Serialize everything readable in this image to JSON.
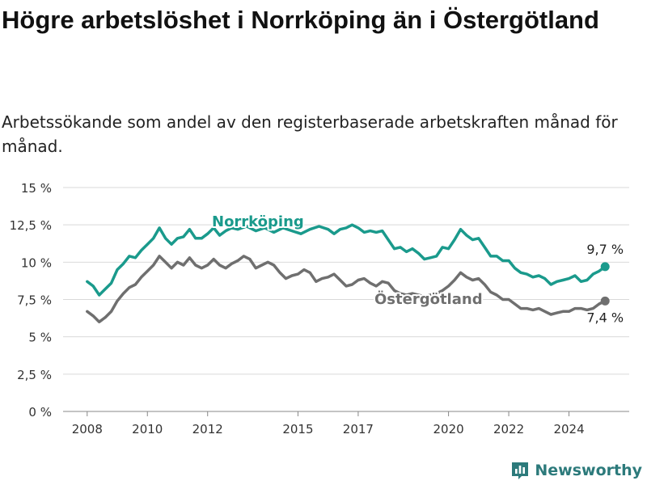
{
  "title": "Högre arbetslöshet i Norrköping än i Östergötland",
  "subtitle": "Arbetssökande som andel av den registerbaserade arbetskraften månad för månad.",
  "brand": "Newsworthy",
  "colors": {
    "norrkoping": "#1a9a8c",
    "ostergotland": "#6f6f6f",
    "grid": "#d9d9d9",
    "brand": "#2c7a7b"
  },
  "chart_data": {
    "type": "line",
    "ylim": [
      0,
      15
    ],
    "y_ticks": [
      0,
      2.5,
      5,
      7.5,
      10,
      12.5,
      15
    ],
    "y_tick_labels": [
      "0 %",
      "2,5 %",
      "5 %",
      "7,5 %",
      "10 %",
      "12,5 %",
      "15 %"
    ],
    "x_ticks": [
      2008,
      2010,
      2012,
      2015,
      2017,
      2020,
      2022,
      2024
    ],
    "x_tick_labels": [
      "2008",
      "2010",
      "2012",
      "2015",
      "2017",
      "2020",
      "2022",
      "2024"
    ],
    "xlim": [
      2007.2,
      2026.0
    ],
    "grid": "horizontal",
    "series": [
      {
        "name": "Norrköping",
        "color": "#1a9a8c",
        "last_label": "9,7 %",
        "points": [
          [
            2008.0,
            8.7
          ],
          [
            2008.2,
            8.4
          ],
          [
            2008.4,
            7.8
          ],
          [
            2008.6,
            8.2
          ],
          [
            2008.8,
            8.6
          ],
          [
            2009.0,
            9.5
          ],
          [
            2009.2,
            9.9
          ],
          [
            2009.4,
            10.4
          ],
          [
            2009.6,
            10.3
          ],
          [
            2009.8,
            10.8
          ],
          [
            2010.0,
            11.2
          ],
          [
            2010.2,
            11.6
          ],
          [
            2010.4,
            12.3
          ],
          [
            2010.6,
            11.6
          ],
          [
            2010.8,
            11.2
          ],
          [
            2011.0,
            11.6
          ],
          [
            2011.2,
            11.7
          ],
          [
            2011.4,
            12.2
          ],
          [
            2011.6,
            11.6
          ],
          [
            2011.8,
            11.6
          ],
          [
            2012.0,
            11.9
          ],
          [
            2012.2,
            12.3
          ],
          [
            2012.4,
            11.8
          ],
          [
            2012.6,
            12.1
          ],
          [
            2012.8,
            12.3
          ],
          [
            2013.0,
            12.2
          ],
          [
            2013.3,
            12.4
          ],
          [
            2013.6,
            12.1
          ],
          [
            2013.9,
            12.3
          ],
          [
            2014.2,
            12.0
          ],
          [
            2014.5,
            12.3
          ],
          [
            2014.8,
            12.1
          ],
          [
            2015.1,
            11.9
          ],
          [
            2015.4,
            12.2
          ],
          [
            2015.7,
            12.4
          ],
          [
            2016.0,
            12.2
          ],
          [
            2016.2,
            11.9
          ],
          [
            2016.4,
            12.2
          ],
          [
            2016.6,
            12.3
          ],
          [
            2016.8,
            12.5
          ],
          [
            2017.0,
            12.3
          ],
          [
            2017.2,
            12.0
          ],
          [
            2017.4,
            12.1
          ],
          [
            2017.6,
            12.0
          ],
          [
            2017.8,
            12.1
          ],
          [
            2018.0,
            11.5
          ],
          [
            2018.2,
            10.9
          ],
          [
            2018.4,
            11.0
          ],
          [
            2018.6,
            10.7
          ],
          [
            2018.8,
            10.9
          ],
          [
            2019.0,
            10.6
          ],
          [
            2019.2,
            10.2
          ],
          [
            2019.4,
            10.3
          ],
          [
            2019.6,
            10.4
          ],
          [
            2019.8,
            11.0
          ],
          [
            2020.0,
            10.9
          ],
          [
            2020.2,
            11.5
          ],
          [
            2020.4,
            12.2
          ],
          [
            2020.6,
            11.8
          ],
          [
            2020.8,
            11.5
          ],
          [
            2021.0,
            11.6
          ],
          [
            2021.2,
            11.0
          ],
          [
            2021.4,
            10.4
          ],
          [
            2021.6,
            10.4
          ],
          [
            2021.8,
            10.1
          ],
          [
            2022.0,
            10.1
          ],
          [
            2022.2,
            9.6
          ],
          [
            2022.4,
            9.3
          ],
          [
            2022.6,
            9.2
          ],
          [
            2022.8,
            9.0
          ],
          [
            2023.0,
            9.1
          ],
          [
            2023.2,
            8.9
          ],
          [
            2023.4,
            8.5
          ],
          [
            2023.6,
            8.7
          ],
          [
            2023.8,
            8.8
          ],
          [
            2024.0,
            8.9
          ],
          [
            2024.2,
            9.1
          ],
          [
            2024.4,
            8.7
          ],
          [
            2024.6,
            8.8
          ],
          [
            2024.8,
            9.2
          ],
          [
            2025.0,
            9.4
          ],
          [
            2025.2,
            9.7
          ]
        ]
      },
      {
        "name": "Östergötland",
        "color": "#6f6f6f",
        "last_label": "7,4 %",
        "points": [
          [
            2008.0,
            6.7
          ],
          [
            2008.2,
            6.4
          ],
          [
            2008.4,
            6.0
          ],
          [
            2008.6,
            6.3
          ],
          [
            2008.8,
            6.7
          ],
          [
            2009.0,
            7.4
          ],
          [
            2009.2,
            7.9
          ],
          [
            2009.4,
            8.3
          ],
          [
            2009.6,
            8.5
          ],
          [
            2009.8,
            9.0
          ],
          [
            2010.0,
            9.4
          ],
          [
            2010.2,
            9.8
          ],
          [
            2010.4,
            10.4
          ],
          [
            2010.6,
            10.0
          ],
          [
            2010.8,
            9.6
          ],
          [
            2011.0,
            10.0
          ],
          [
            2011.2,
            9.8
          ],
          [
            2011.4,
            10.3
          ],
          [
            2011.6,
            9.8
          ],
          [
            2011.8,
            9.6
          ],
          [
            2012.0,
            9.8
          ],
          [
            2012.2,
            10.2
          ],
          [
            2012.4,
            9.8
          ],
          [
            2012.6,
            9.6
          ],
          [
            2012.8,
            9.9
          ],
          [
            2013.0,
            10.1
          ],
          [
            2013.2,
            10.4
          ],
          [
            2013.4,
            10.2
          ],
          [
            2013.6,
            9.6
          ],
          [
            2013.8,
            9.8
          ],
          [
            2014.0,
            10.0
          ],
          [
            2014.2,
            9.8
          ],
          [
            2014.4,
            9.3
          ],
          [
            2014.6,
            8.9
          ],
          [
            2014.8,
            9.1
          ],
          [
            2015.0,
            9.2
          ],
          [
            2015.2,
            9.5
          ],
          [
            2015.4,
            9.3
          ],
          [
            2015.6,
            8.7
          ],
          [
            2015.8,
            8.9
          ],
          [
            2016.0,
            9.0
          ],
          [
            2016.2,
            9.2
          ],
          [
            2016.4,
            8.8
          ],
          [
            2016.6,
            8.4
          ],
          [
            2016.8,
            8.5
          ],
          [
            2017.0,
            8.8
          ],
          [
            2017.2,
            8.9
          ],
          [
            2017.4,
            8.6
          ],
          [
            2017.6,
            8.4
          ],
          [
            2017.8,
            8.7
          ],
          [
            2018.0,
            8.6
          ],
          [
            2018.2,
            8.1
          ],
          [
            2018.4,
            7.9
          ],
          [
            2018.6,
            7.8
          ],
          [
            2018.8,
            7.9
          ],
          [
            2019.0,
            7.8
          ],
          [
            2019.2,
            7.7
          ],
          [
            2019.4,
            7.8
          ],
          [
            2019.6,
            7.9
          ],
          [
            2019.8,
            8.1
          ],
          [
            2020.0,
            8.4
          ],
          [
            2020.2,
            8.8
          ],
          [
            2020.4,
            9.3
          ],
          [
            2020.6,
            9.0
          ],
          [
            2020.8,
            8.8
          ],
          [
            2021.0,
            8.9
          ],
          [
            2021.2,
            8.5
          ],
          [
            2021.4,
            8.0
          ],
          [
            2021.6,
            7.8
          ],
          [
            2021.8,
            7.5
          ],
          [
            2022.0,
            7.5
          ],
          [
            2022.2,
            7.2
          ],
          [
            2022.4,
            6.9
          ],
          [
            2022.6,
            6.9
          ],
          [
            2022.8,
            6.8
          ],
          [
            2023.0,
            6.9
          ],
          [
            2023.2,
            6.7
          ],
          [
            2023.4,
            6.5
          ],
          [
            2023.6,
            6.6
          ],
          [
            2023.8,
            6.7
          ],
          [
            2024.0,
            6.7
          ],
          [
            2024.2,
            6.9
          ],
          [
            2024.4,
            6.9
          ],
          [
            2024.6,
            6.8
          ],
          [
            2024.8,
            6.9
          ],
          [
            2025.0,
            7.2
          ],
          [
            2025.2,
            7.4
          ]
        ]
      }
    ]
  }
}
